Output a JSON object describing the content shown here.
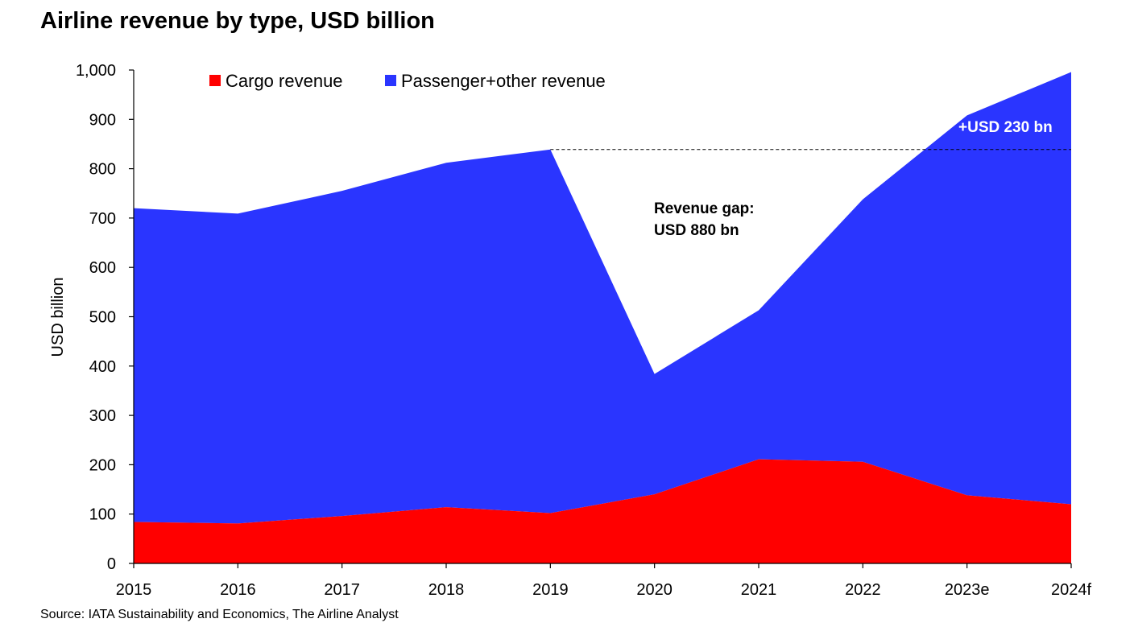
{
  "title": "Airline revenue by type, USD billion",
  "source": "Source: IATA Sustainability and Economics, The Airline Analyst",
  "colors": {
    "cargo": "#ff0000",
    "passenger": "#2a35ff",
    "annotation_light": "#ffffff",
    "annotation_dark": "#000000"
  },
  "chart_data": {
    "type": "area",
    "stacked": true,
    "categories": [
      "2015",
      "2016",
      "2017",
      "2018",
      "2019",
      "2020",
      "2021",
      "2022",
      "2023e",
      "2024f"
    ],
    "series": [
      {
        "name": "Cargo revenue",
        "values": [
          84,
          81,
          96,
          114,
          102,
          140,
          211,
          206,
          138,
          120
        ]
      },
      {
        "name": "Passenger+other revenue",
        "values": [
          636,
          628,
          659,
          698,
          737,
          244,
          302,
          532,
          770,
          876
        ]
      }
    ],
    "ylabel": "USD billion",
    "ylim": [
      0,
      1000
    ],
    "yticks": [
      "0",
      "100",
      "200",
      "300",
      "400",
      "500",
      "600",
      "700",
      "800",
      "900",
      "1,000"
    ],
    "legend_position": "top",
    "reference_line": {
      "value": 839,
      "from": "2019",
      "to": "2024f",
      "style": "dashed"
    },
    "annotations": [
      {
        "lines": [
          "Revenue gap:",
          "USD 880 bn"
        ],
        "near": "2020-2021 gap"
      },
      {
        "lines": [
          "+USD 230 bn"
        ],
        "near": "2024f"
      }
    ]
  }
}
